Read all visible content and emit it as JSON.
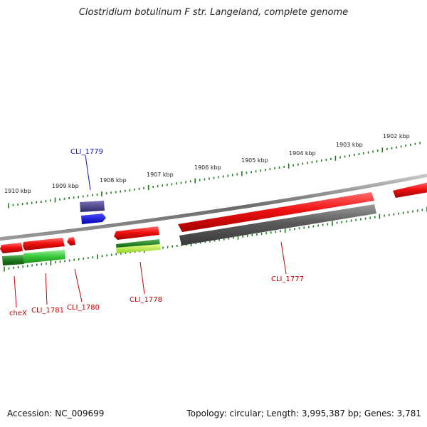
{
  "title": "Clostridium botulinum F str. Langeland, complete genome",
  "footer": {
    "accession": "Accession: NC_009699",
    "topology": "Topology: circular; Length: 3,995,387 bp; Genes: 3,781"
  },
  "scale_labels": [
    "1910 kbp",
    "1909 kbp",
    "1908 kbp",
    "1907 kbp",
    "1906 kbp",
    "1905 kbp",
    "1904 kbp",
    "1903 kbp",
    "1902 kbp"
  ],
  "gene_labels": {
    "cli1779": "CLI_1779",
    "chex": "cheX",
    "cli1781": "CLI_1781",
    "cli1780": "CLI_1780",
    "cli1778": "CLI_1778",
    "cli1777": "CLI_1777"
  },
  "colors": {
    "forward_gene": "#e8140f",
    "cds_gray": "#606060",
    "rna_green": "#2fa82f",
    "highlight_blue": "#0a0adc",
    "tick": "#1f7a1f",
    "label_red": "#c80000",
    "label_blue": "#1010c8"
  }
}
